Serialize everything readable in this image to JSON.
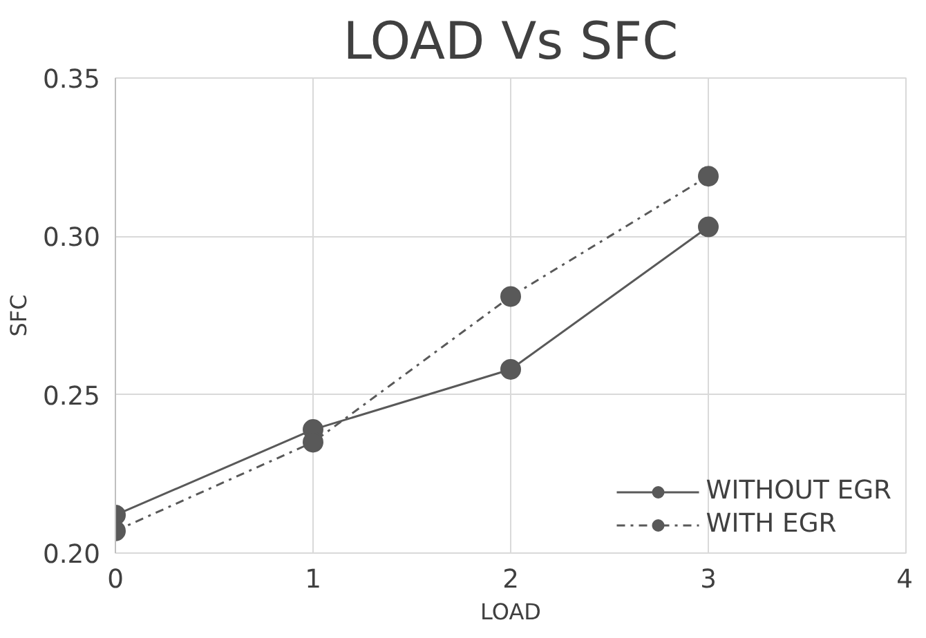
{
  "chart_data": {
    "type": "line",
    "title": "LOAD Vs SFC",
    "xlabel": "LOAD",
    "ylabel": "SFC",
    "x": [
      0,
      1,
      2,
      3
    ],
    "series": [
      {
        "name": "WITHOUT EGR",
        "color": "#595959",
        "values": [
          0.212,
          0.239,
          0.258,
          0.303
        ],
        "line_style": "solid"
      },
      {
        "name": "WITH EGR",
        "color": "#595959",
        "values": [
          0.207,
          0.235,
          0.281,
          0.319
        ],
        "line_style": "dashed"
      }
    ],
    "xlim": [
      0,
      4
    ],
    "xticks": [
      0,
      1,
      2,
      3,
      4
    ],
    "ylim": [
      0.2,
      0.35
    ],
    "yticks": [
      {
        "value": 0.2,
        "label": "0.20"
      },
      {
        "value": 0.25,
        "label": "0.25"
      },
      {
        "value": 0.3,
        "label": "0.30"
      },
      {
        "value": 0.35,
        "label": "0.35"
      }
    ],
    "grid": true,
    "legend": "bottom right",
    "marker": "circle"
  }
}
